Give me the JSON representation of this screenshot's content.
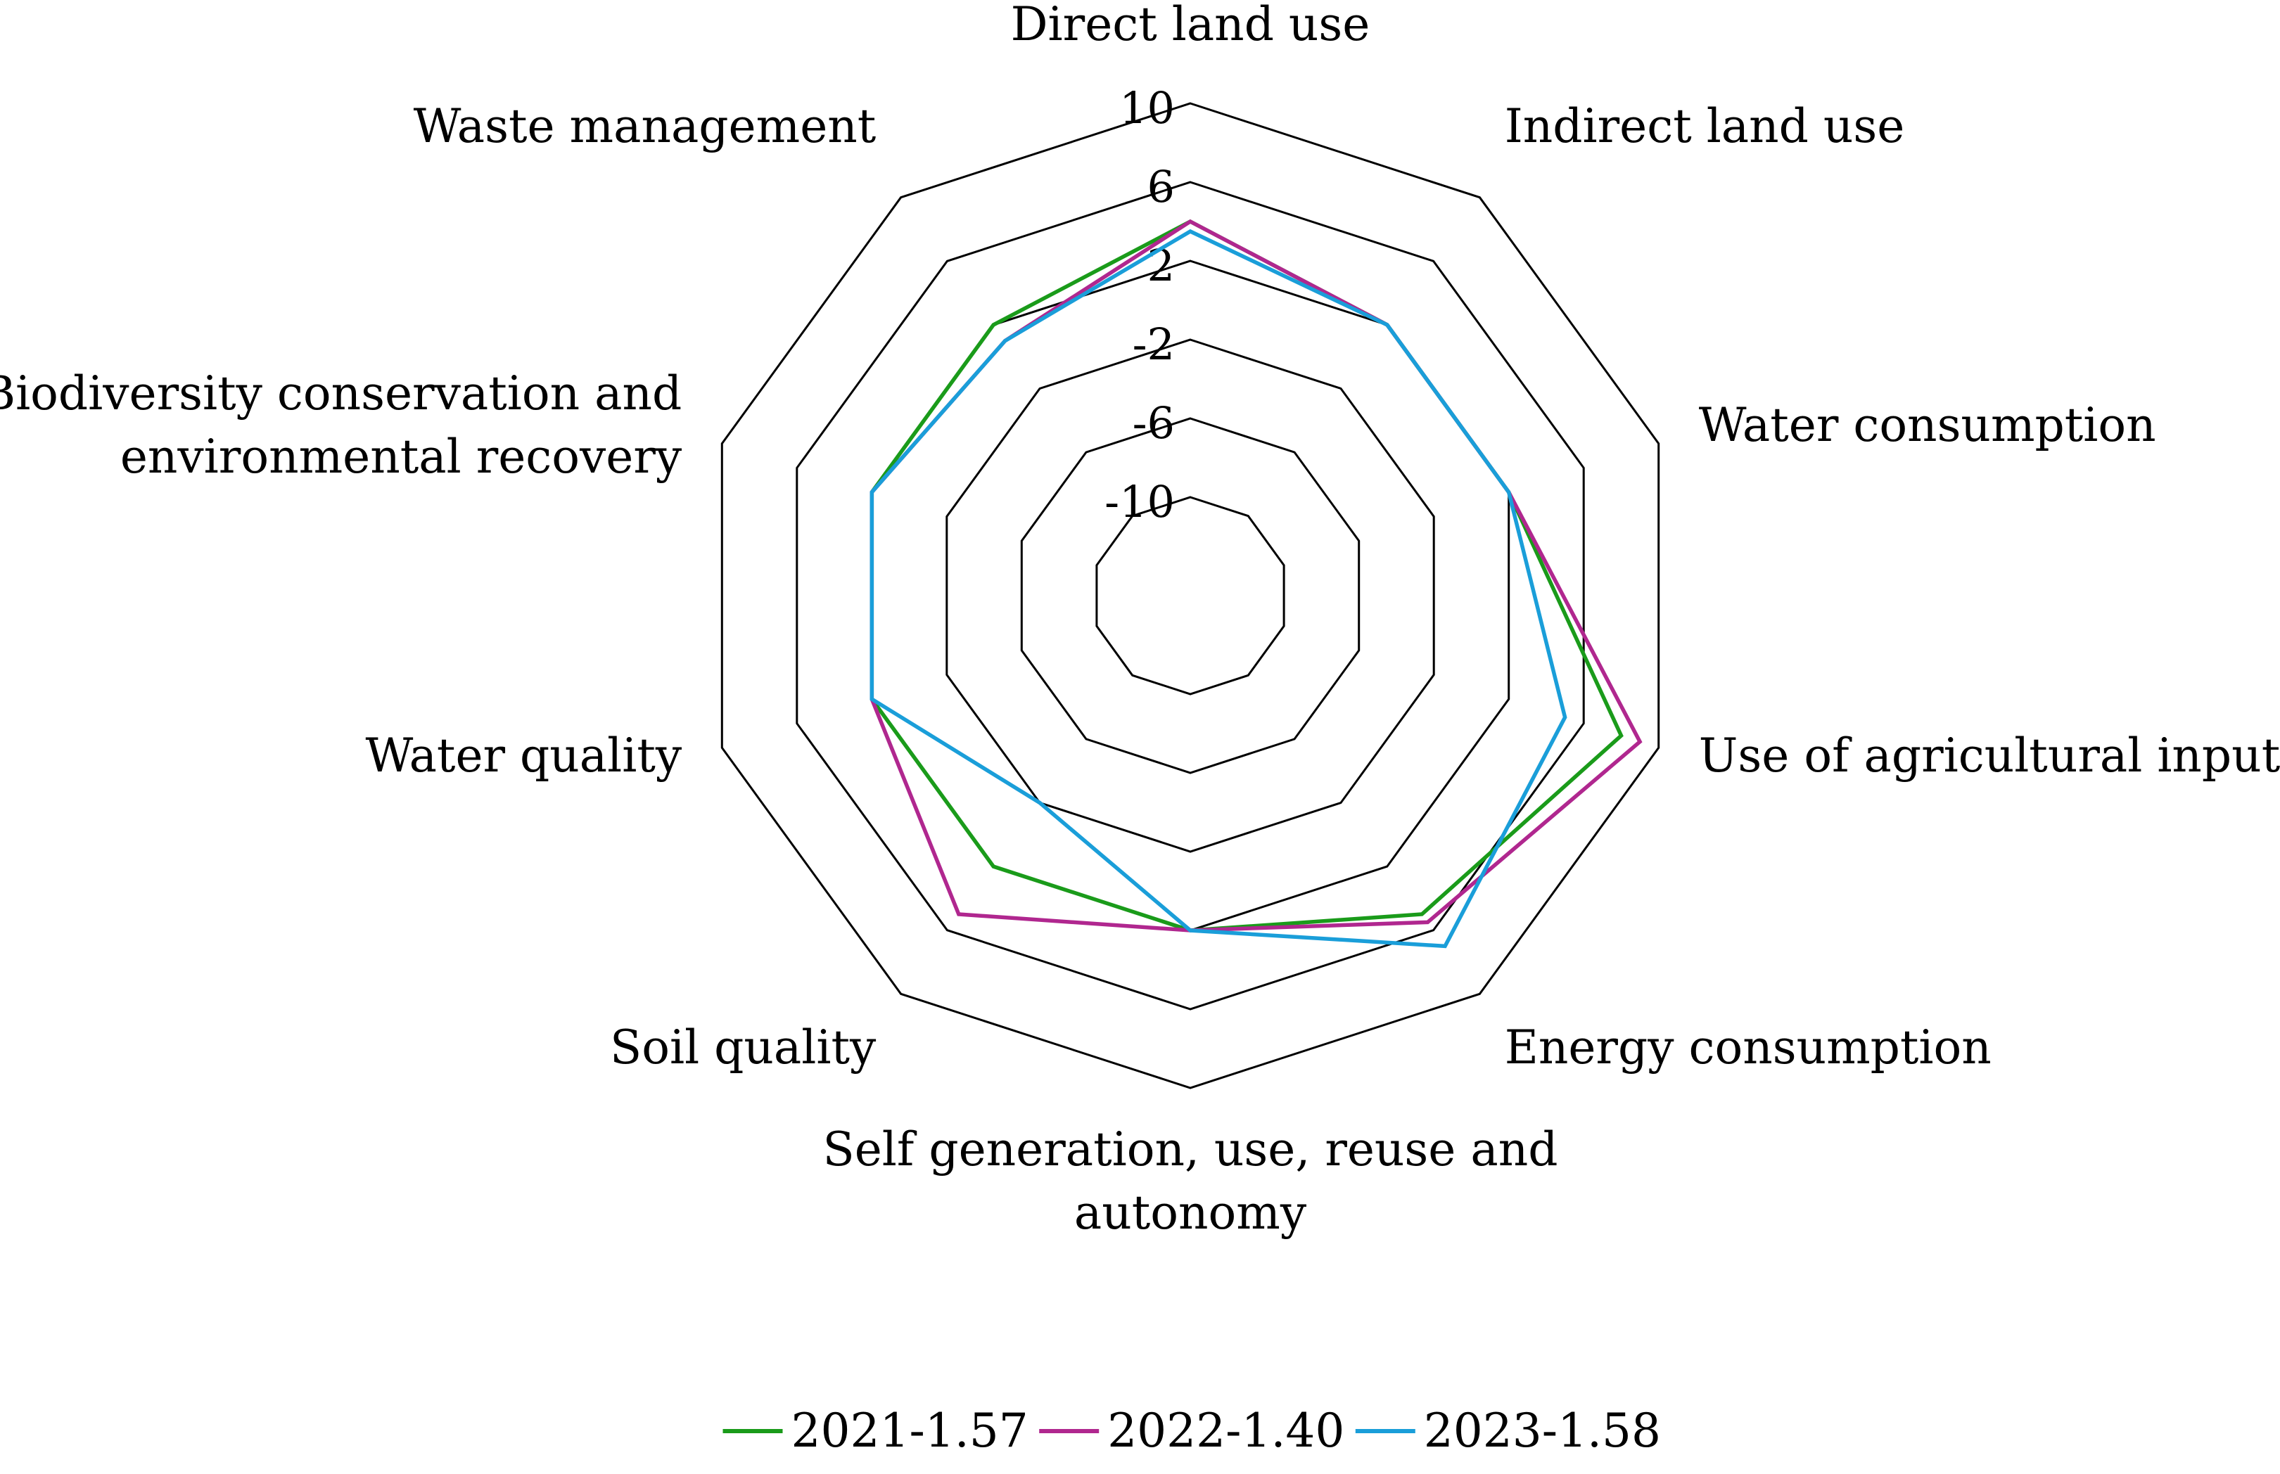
{
  "chart_data": {
    "type": "radar",
    "axes": [
      "Direct land use",
      "Indirect land use",
      "Water consumption",
      "Use of agricultural inputs",
      "Energy consumption",
      "Self generation, use, reuse and autonomy",
      "Soil quality",
      "Water quality",
      "Biodiversity conservation and environmental recovery",
      "Waste management"
    ],
    "axis_label_lines": [
      [
        "Direct land use"
      ],
      [
        "Indirect land use"
      ],
      [
        "Water consumption"
      ],
      [
        "Use of agricultural inputs"
      ],
      [
        "Energy consumption"
      ],
      [
        "Self generation, use, reuse and",
        "autonomy"
      ],
      [
        "Soil quality"
      ],
      [
        "Water quality"
      ],
      [
        "Biodiversity conservation and",
        "environmental recovery"
      ],
      [
        "Waste management"
      ]
    ],
    "ticks": [
      -10,
      -6,
      -2,
      2,
      6,
      10
    ],
    "tick_labels": [
      "-10",
      "-6",
      "-2",
      "2",
      "6",
      "10"
    ],
    "rlim": [
      -10,
      10
    ],
    "grid": true,
    "legend_position": "bottom",
    "series": [
      {
        "name": "2021-1.57",
        "color": "#1a9b1a",
        "values": [
          4,
          2,
          2,
          8,
          5,
          2,
          2,
          2,
          2,
          2
        ]
      },
      {
        "name": "2022-1.40",
        "color": "#b0278f",
        "values": [
          4,
          2,
          2,
          9,
          5.5,
          2,
          5,
          2,
          2,
          1
        ]
      },
      {
        "name": "2023-1.58",
        "color": "#1a9ed9",
        "values": [
          3.5,
          2,
          2,
          5,
          7,
          2,
          -2,
          2,
          2,
          1
        ]
      }
    ]
  }
}
